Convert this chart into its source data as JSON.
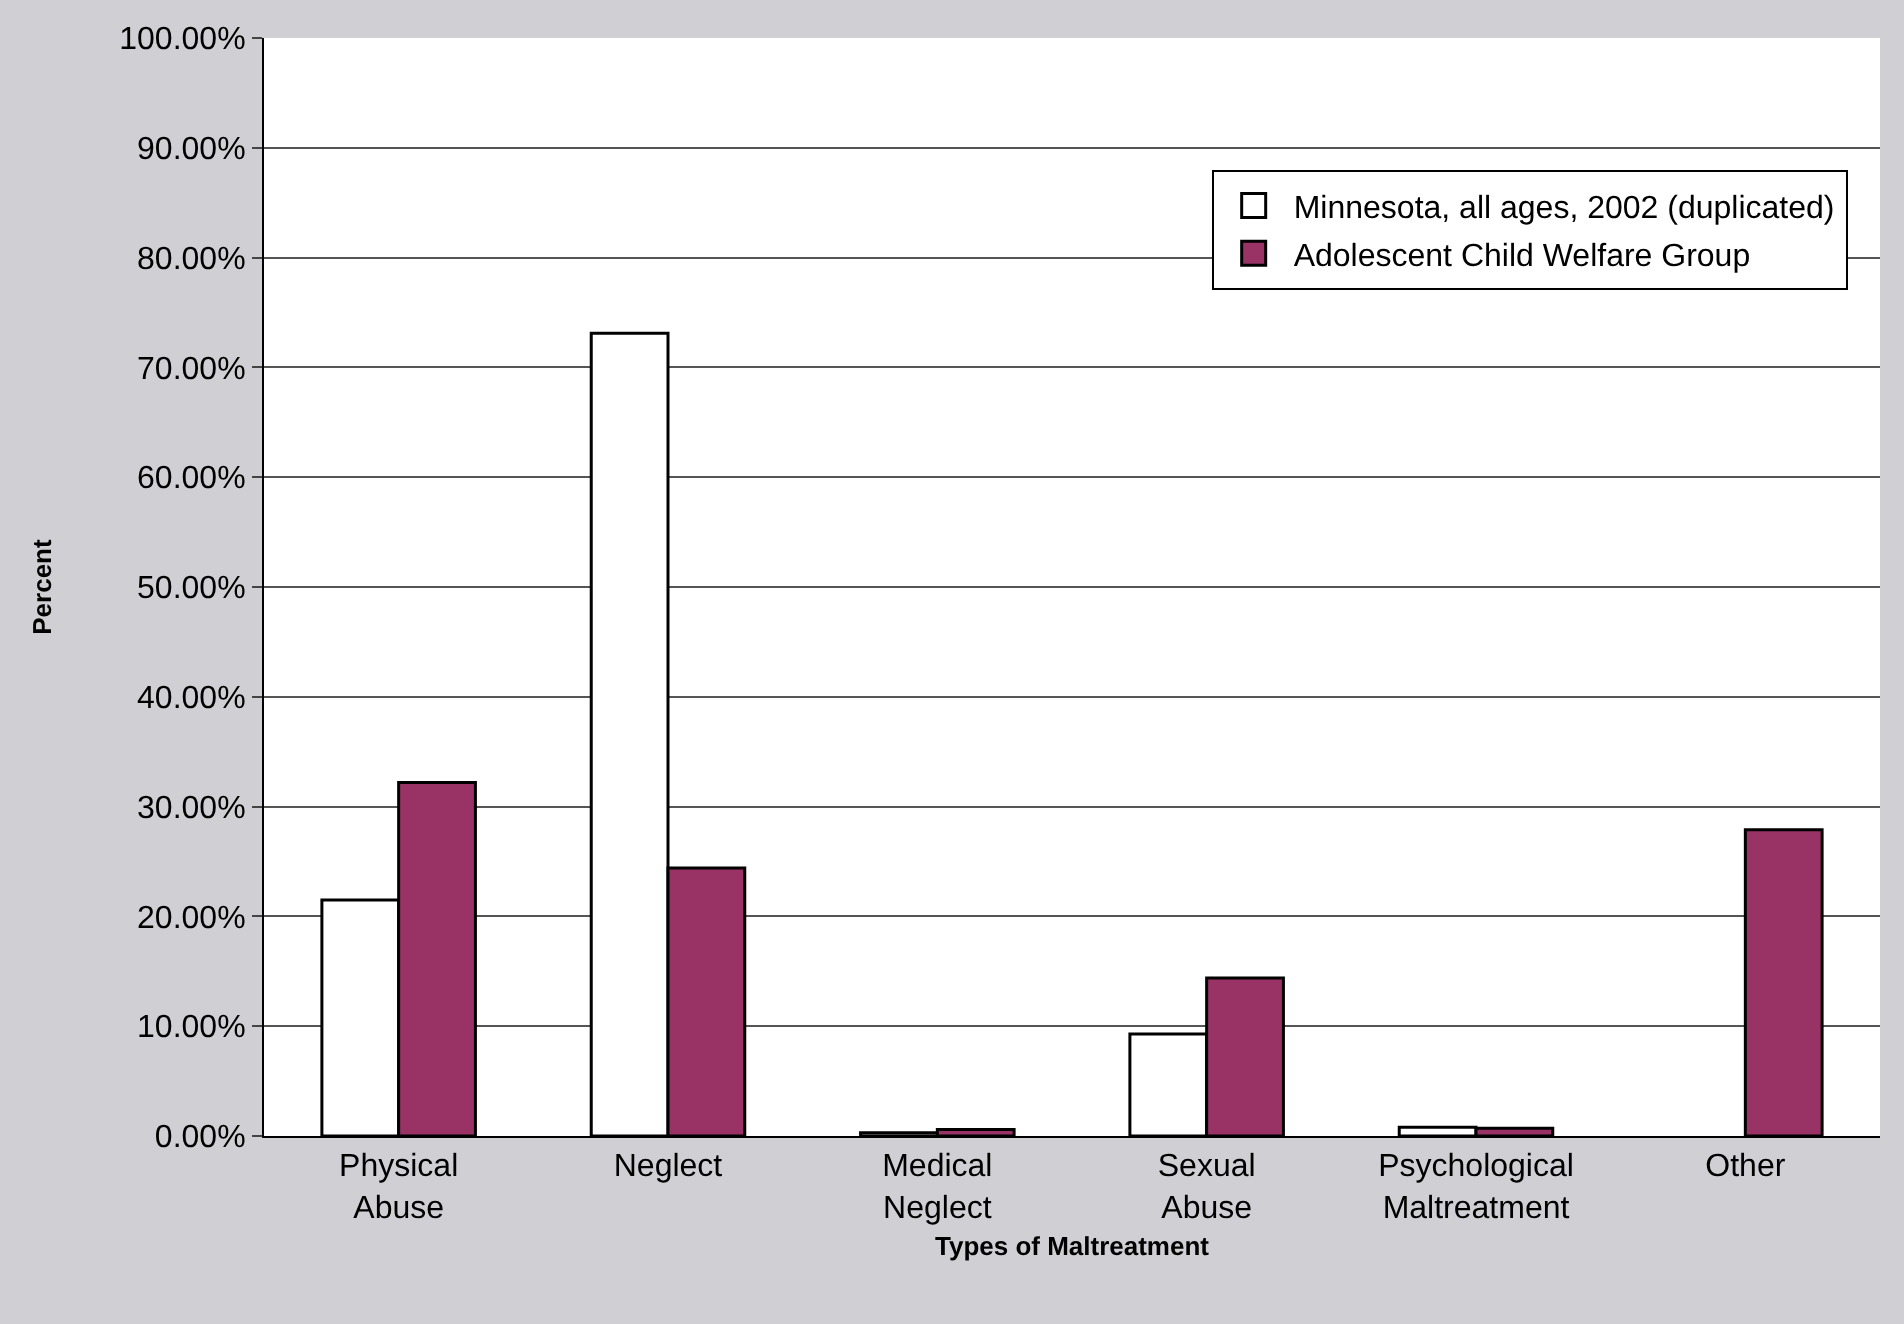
{
  "chart_data": {
    "type": "bar",
    "xlabel": "Types of Maltreatment",
    "ylabel": "Percent",
    "categories": [
      "Physical Abuse",
      "Neglect",
      "Medical Neglect",
      "Sexual Abuse",
      "Psychological Maltreatment",
      "Other"
    ],
    "series": [
      {
        "name": "Minnesota, all ages, 2002 (duplicated)",
        "color": "#ffffff",
        "values": [
          21.5,
          73.1,
          0.3,
          9.3,
          0.8,
          null
        ]
      },
      {
        "name": "Adolescent Child Welfare Group",
        "color": "#993366",
        "values": [
          32.2,
          24.4,
          0.6,
          14.4,
          0.7,
          27.9
        ]
      }
    ],
    "ylim": [
      0,
      100
    ],
    "yticks": [
      {
        "value": 0,
        "label": "0.00%"
      },
      {
        "value": 10,
        "label": "10.00%"
      },
      {
        "value": 20,
        "label": "20.00%"
      },
      {
        "value": 30,
        "label": "30.00%"
      },
      {
        "value": 40,
        "label": "40.00%"
      },
      {
        "value": 50,
        "label": "50.00%"
      },
      {
        "value": 60,
        "label": "60.00%"
      },
      {
        "value": 70,
        "label": "70.00%"
      },
      {
        "value": 80,
        "label": "80.00%"
      },
      {
        "value": 90,
        "label": "90.00%"
      },
      {
        "value": 100,
        "label": "100.00%"
      }
    ],
    "grid": "y",
    "legend": "top right"
  }
}
